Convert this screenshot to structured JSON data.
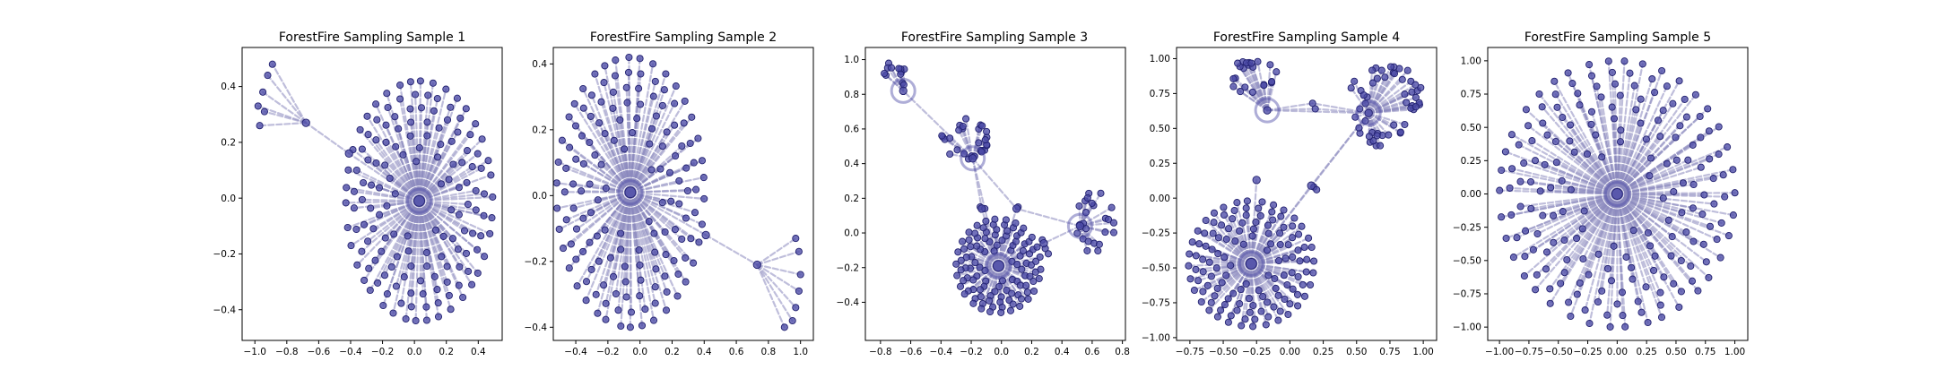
{
  "colors": {
    "node_fill": "#4b4aa6",
    "node_edge": "#222170",
    "edge": "#8a88bd"
  },
  "chart_data": [
    {
      "type": "scatter",
      "title": "ForestFire Sampling Sample 1",
      "xlim": [
        -1.08,
        0.55
      ],
      "ylim": [
        -0.51,
        0.54
      ],
      "xticks": [
        -1.0,
        -0.8,
        -0.6,
        -0.4,
        -0.2,
        0.0,
        0.2,
        0.4
      ],
      "xtick_labels": [
        "−1.0",
        "−0.8",
        "−0.6",
        "−0.4",
        "−0.2",
        "0.0",
        "0.2",
        "0.4"
      ],
      "yticks": [
        -0.4,
        -0.2,
        0.0,
        0.2,
        0.4
      ],
      "ytick_labels": [
        "−0.4",
        "−0.2",
        "0.0",
        "0.2",
        "0.4"
      ],
      "grid": false,
      "hubs": [
        [
          0.03,
          -0.01
        ],
        [
          -0.41,
          0.16
        ],
        [
          -0.68,
          0.27
        ]
      ],
      "clusters": [
        {
          "hub": 0,
          "shape": "disk",
          "center": [
            0.03,
            -0.01
          ],
          "rx": 0.46,
          "ry": 0.43,
          "count": 150
        }
      ],
      "extra_nodes": [
        [
          -0.97,
          0.26
        ],
        [
          -0.98,
          0.33
        ],
        [
          -0.95,
          0.38
        ],
        [
          -0.92,
          0.44
        ],
        [
          -0.89,
          0.48
        ],
        [
          -0.94,
          0.31
        ]
      ],
      "extra_edges": [
        [
          0,
          1
        ],
        [
          1,
          2
        ],
        [
          2,
          "x0"
        ],
        [
          2,
          "x1"
        ],
        [
          2,
          "x2"
        ],
        [
          2,
          "x3"
        ],
        [
          2,
          "x4"
        ],
        [
          2,
          "x5"
        ]
      ]
    },
    {
      "type": "scatter",
      "title": "ForestFire Sampling Sample 2",
      "xlim": [
        -0.54,
        1.08
      ],
      "ylim": [
        -0.44,
        0.45
      ],
      "xticks": [
        -0.4,
        -0.2,
        0.0,
        0.2,
        0.4,
        0.6,
        0.8,
        1.0
      ],
      "xtick_labels": [
        "−0.4",
        "−0.2",
        "0.0",
        "0.2",
        "0.4",
        "0.6",
        "0.8",
        "1.0"
      ],
      "yticks": [
        -0.4,
        -0.2,
        0.0,
        0.2,
        0.4
      ],
      "ytick_labels": [
        "−0.4",
        "−0.2",
        "0.0",
        "0.2",
        "0.4"
      ],
      "grid": false,
      "hubs": [
        [
          -0.06,
          0.01
        ],
        [
          0.41,
          -0.12
        ],
        [
          0.73,
          -0.21
        ]
      ],
      "clusters": [
        {
          "hub": 0,
          "shape": "disk",
          "center": [
            -0.06,
            0.01
          ],
          "rx": 0.46,
          "ry": 0.41,
          "count": 150
        }
      ],
      "extra_nodes": [
        [
          0.97,
          -0.13
        ],
        [
          0.99,
          -0.17
        ],
        [
          1.0,
          -0.24
        ],
        [
          0.99,
          -0.29
        ],
        [
          0.97,
          -0.34
        ],
        [
          0.95,
          -0.38
        ],
        [
          0.9,
          -0.4
        ]
      ],
      "extra_edges": [
        [
          0,
          1
        ],
        [
          1,
          2
        ],
        [
          2,
          "x0"
        ],
        [
          2,
          "x1"
        ],
        [
          2,
          "x2"
        ],
        [
          2,
          "x3"
        ],
        [
          2,
          "x4"
        ],
        [
          2,
          "x5"
        ],
        [
          2,
          "x6"
        ]
      ]
    },
    {
      "type": "scatter",
      "title": "ForestFire Sampling Sample 3",
      "xlim": [
        -0.9,
        0.82
      ],
      "ylim": [
        -0.62,
        1.07
      ],
      "xticks": [
        -0.8,
        -0.6,
        -0.4,
        -0.2,
        0.0,
        0.2,
        0.4,
        0.6,
        0.8
      ],
      "xtick_labels": [
        "−0.8",
        "−0.6",
        "−0.4",
        "−0.2",
        "0.0",
        "0.2",
        "0.4",
        "0.6",
        "0.8"
      ],
      "yticks": [
        -0.4,
        -0.2,
        0.0,
        0.2,
        0.4,
        0.6,
        0.8,
        1.0
      ],
      "ytick_labels": [
        "−0.4",
        "−0.2",
        "0.0",
        "0.2",
        "0.4",
        "0.6",
        "0.8",
        "1.0"
      ],
      "grid": false,
      "hubs": [
        [
          -0.02,
          -0.19
        ],
        [
          -0.19,
          0.43
        ],
        [
          0.52,
          0.04
        ],
        [
          -0.65,
          0.82
        ],
        [
          0.28,
          -0.06
        ],
        [
          -0.13,
          0.14
        ],
        [
          0.1,
          0.14
        ]
      ],
      "clusters": [
        {
          "hub": 0,
          "shape": "disk",
          "center": [
            -0.02,
            -0.19
          ],
          "rx": 0.28,
          "ry": 0.27,
          "count": 110
        },
        {
          "hub": 1,
          "shape": "fan",
          "center": [
            -0.24,
            0.54
          ],
          "rx": 0.16,
          "ry": 0.12,
          "count": 28
        },
        {
          "hub": 2,
          "shape": "fan",
          "center": [
            0.62,
            0.06
          ],
          "rx": 0.13,
          "ry": 0.18,
          "count": 24
        },
        {
          "hub": 3,
          "shape": "fan",
          "center": [
            -0.72,
            0.9
          ],
          "rx": 0.09,
          "ry": 0.1,
          "count": 12
        }
      ],
      "extra_nodes": [
        [
          -0.14,
          0.15
        ],
        [
          -0.11,
          0.14
        ],
        [
          0.11,
          0.15
        ],
        [
          0.27,
          -0.04
        ],
        [
          0.29,
          -0.09
        ],
        [
          0.31,
          -0.12
        ]
      ],
      "extra_edges": [
        [
          0,
          5
        ],
        [
          0,
          6
        ],
        [
          0,
          4
        ],
        [
          1,
          5
        ],
        [
          1,
          6
        ],
        [
          1,
          3
        ],
        [
          2,
          4
        ],
        [
          2,
          6
        ],
        [
          1,
          0
        ]
      ]
    },
    {
      "type": "scatter",
      "title": "ForestFire Sampling Sample 4",
      "xlim": [
        -0.85,
        1.1
      ],
      "ylim": [
        -1.02,
        1.08
      ],
      "xticks": [
        -0.75,
        -0.5,
        -0.25,
        0.0,
        0.25,
        0.5,
        0.75,
        1.0
      ],
      "xtick_labels": [
        "−0.75",
        "−0.50",
        "−0.25",
        "0.00",
        "0.25",
        "0.50",
        "0.75",
        "1.00"
      ],
      "yticks": [
        -1.0,
        -0.75,
        -0.5,
        -0.25,
        0.0,
        0.25,
        0.5,
        0.75,
        1.0
      ],
      "ytick_labels": [
        "−1.00",
        "−0.75",
        "−0.50",
        "−0.25",
        "0.00",
        "0.25",
        "0.50",
        "0.75",
        "1.00"
      ],
      "grid": false,
      "hubs": [
        [
          -0.29,
          -0.47
        ],
        [
          0.59,
          0.61
        ],
        [
          -0.17,
          0.63
        ],
        [
          -0.25,
          0.13
        ],
        [
          0.16,
          0.09
        ]
      ],
      "clusters": [
        {
          "hub": 0,
          "shape": "disk",
          "center": [
            -0.29,
            -0.47
          ],
          "rx": 0.47,
          "ry": 0.45,
          "count": 130
        },
        {
          "hub": 1,
          "shape": "fan",
          "center": [
            0.72,
            0.68
          ],
          "rx": 0.28,
          "ry": 0.32,
          "count": 52
        },
        {
          "hub": 2,
          "shape": "fan",
          "center": [
            -0.28,
            0.86
          ],
          "rx": 0.2,
          "ry": 0.14,
          "count": 22
        }
      ],
      "extra_nodes": [
        [
          0.17,
          0.68
        ],
        [
          0.19,
          0.64
        ],
        [
          0.18,
          0.08
        ],
        [
          0.2,
          0.06
        ]
      ],
      "extra_edges": [
        [
          0,
          1
        ],
        [
          0,
          4
        ],
        [
          0,
          3
        ],
        [
          2,
          1
        ],
        [
          2,
          "x0"
        ],
        [
          2,
          "x1"
        ],
        [
          1,
          "x0"
        ],
        [
          1,
          "x1"
        ],
        [
          1,
          4
        ]
      ]
    },
    {
      "type": "scatter",
      "title": "ForestFire Sampling Sample 5",
      "xlim": [
        -1.1,
        1.11
      ],
      "ylim": [
        -1.1,
        1.1
      ],
      "xticks": [
        -1.0,
        -0.75,
        -0.5,
        -0.25,
        0.0,
        0.25,
        0.5,
        0.75,
        1.0
      ],
      "xtick_labels": [
        "−1.00",
        "−0.75",
        "−0.50",
        "−0.25",
        "0.00",
        "0.25",
        "0.50",
        "0.75",
        "1.00"
      ],
      "yticks": [
        -1.0,
        -0.75,
        -0.5,
        -0.25,
        0.0,
        0.25,
        0.5,
        0.75,
        1.0
      ],
      "ytick_labels": [
        "−1.00",
        "−0.75",
        "−0.50",
        "−0.25",
        "0.00",
        "0.25",
        "0.50",
        "0.75",
        "1.00"
      ],
      "grid": false,
      "hubs": [
        [
          0.0,
          0.0
        ]
      ],
      "clusters": [
        {
          "hub": 0,
          "shape": "ring",
          "center": [
            0.0,
            0.0
          ],
          "rx": 1.0,
          "ry": 1.0,
          "count": 190
        }
      ],
      "extra_nodes": [],
      "extra_edges": []
    }
  ]
}
